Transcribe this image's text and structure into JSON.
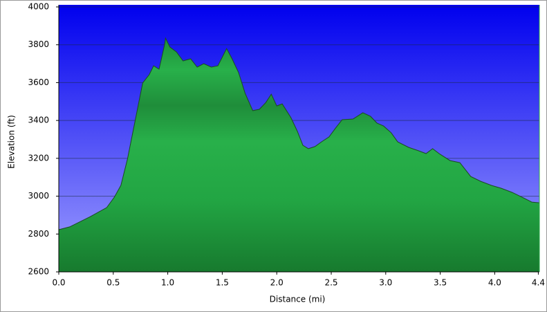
{
  "chart_data": {
    "type": "area",
    "x_label": "Distance (mi)",
    "y_label": "Elevation (ft)",
    "x": [
      0,
      0.1,
      0.29,
      0.44,
      0.51,
      0.57,
      0.63,
      0.7,
      0.77,
      0.83,
      0.87,
      0.92,
      0.97,
      0.98,
      1.02,
      1.08,
      1.14,
      1.21,
      1.27,
      1.33,
      1.4,
      1.46,
      1.54,
      1.59,
      1.65,
      1.71,
      1.78,
      1.84,
      1.9,
      1.95,
      2.0,
      2.05,
      2.13,
      2.19,
      2.24,
      2.29,
      2.35,
      2.41,
      2.48,
      2.54,
      2.6,
      2.7,
      2.79,
      2.86,
      2.92,
      2.98,
      3.05,
      3.11,
      3.21,
      3.3,
      3.37,
      3.43,
      3.49,
      3.59,
      3.68,
      3.78,
      3.87,
      3.97,
      4.06,
      4.16,
      4.25,
      4.34,
      4.41
    ],
    "values": [
      2823,
      2838,
      2892,
      2940,
      2995,
      3057,
      3196,
      3397,
      3598,
      3642,
      3689,
      3671,
      3799,
      3835,
      3788,
      3762,
      3715,
      3726,
      3682,
      3700,
      3682,
      3689,
      3780,
      3726,
      3653,
      3543,
      3452,
      3459,
      3495,
      3539,
      3477,
      3488,
      3415,
      3342,
      3269,
      3251,
      3262,
      3287,
      3313,
      3360,
      3404,
      3408,
      3441,
      3422,
      3386,
      3371,
      3335,
      3287,
      3258,
      3240,
      3225,
      3251,
      3225,
      3188,
      3177,
      3104,
      3079,
      3057,
      3042,
      3020,
      2995,
      2969,
      2965
    ],
    "color": "#22a844",
    "xlim": [
      0,
      4.41
    ],
    "ylim": [
      2600,
      4000
    ],
    "xticks": [
      {
        "value": 0,
        "label": "0.0"
      },
      {
        "value": 0.5,
        "label": "0.5"
      },
      {
        "value": 1,
        "label": "1.0"
      },
      {
        "value": 1.5,
        "label": "1.5"
      },
      {
        "value": 2,
        "label": "2.0"
      },
      {
        "value": 2.5,
        "label": "2.5"
      },
      {
        "value": 3,
        "label": "3.0"
      },
      {
        "value": 3.5,
        "label": "3.5"
      },
      {
        "value": 4,
        "label": "4.0"
      },
      {
        "value": 4.4,
        "label": "4.4"
      }
    ],
    "yticks": [
      2600,
      2800,
      3000,
      3200,
      3400,
      3600,
      3800,
      4000
    ],
    "grid": true
  }
}
